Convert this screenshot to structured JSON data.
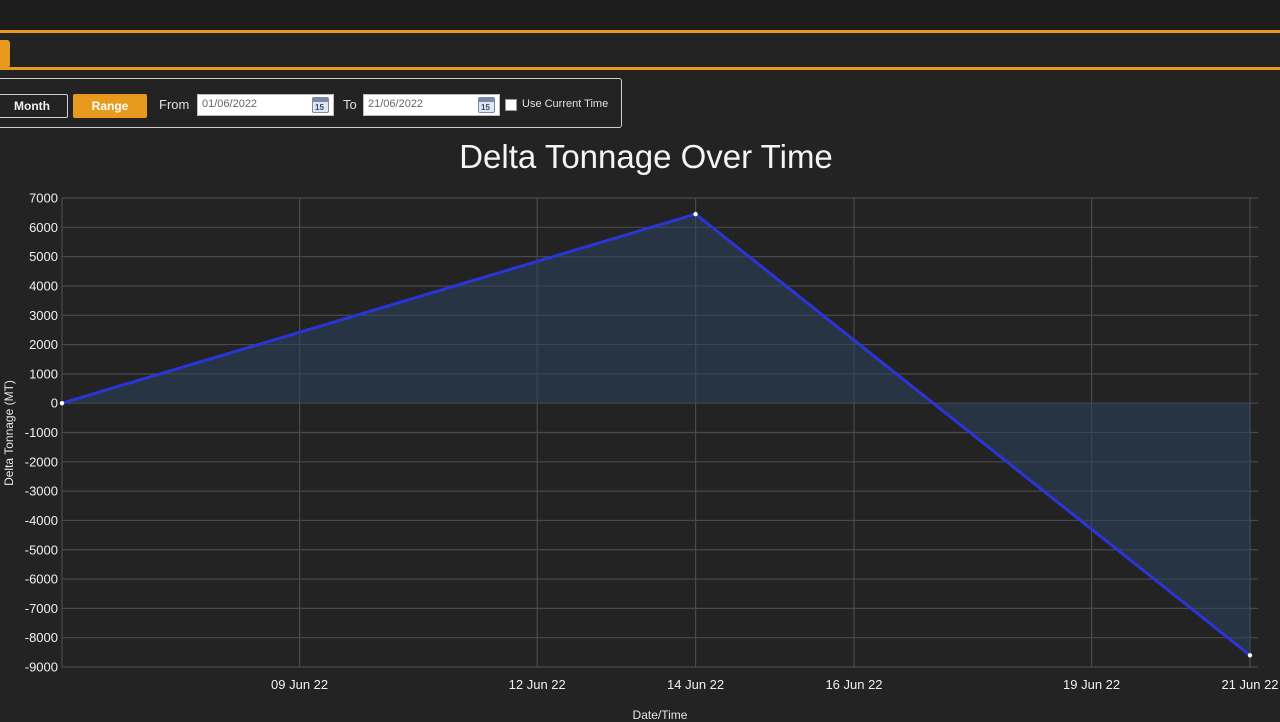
{
  "controls": {
    "month_label": "Month",
    "range_label": "Range",
    "from_label": "From",
    "from_value": "01/06/2022",
    "to_label": "To",
    "to_value": "21/06/2022",
    "use_current_time_label": "Use Current Time",
    "calendar_icon_text": "15"
  },
  "colors": {
    "accent": "#e89a1e",
    "line": "#2a35d8",
    "fill": "#2b4360",
    "grid": "#4a4a4a",
    "background": "#232323"
  },
  "chart_data": {
    "type": "area",
    "title": "Delta Tonnage Over Time",
    "xlabel": "Date/Time",
    "ylabel": "Delta Tonnage (MT)",
    "x": [
      "2022-06-06",
      "2022-06-14",
      "2022-06-21"
    ],
    "series": [
      {
        "values": [
          0,
          6450,
          -8600
        ]
      }
    ],
    "ylim": [
      -9000,
      7000
    ],
    "yticks": [
      7000,
      6000,
      5000,
      4000,
      3000,
      2000,
      1000,
      0,
      -1000,
      -2000,
      -3000,
      -4000,
      -5000,
      -6000,
      -7000,
      -8000,
      -9000
    ],
    "xtick_labels": [
      "09 Jun 22",
      "12 Jun 22",
      "14 Jun 22",
      "16 Jun 22",
      "19 Jun 22",
      "21 Jun 22"
    ],
    "grid": true,
    "legend": "none"
  }
}
